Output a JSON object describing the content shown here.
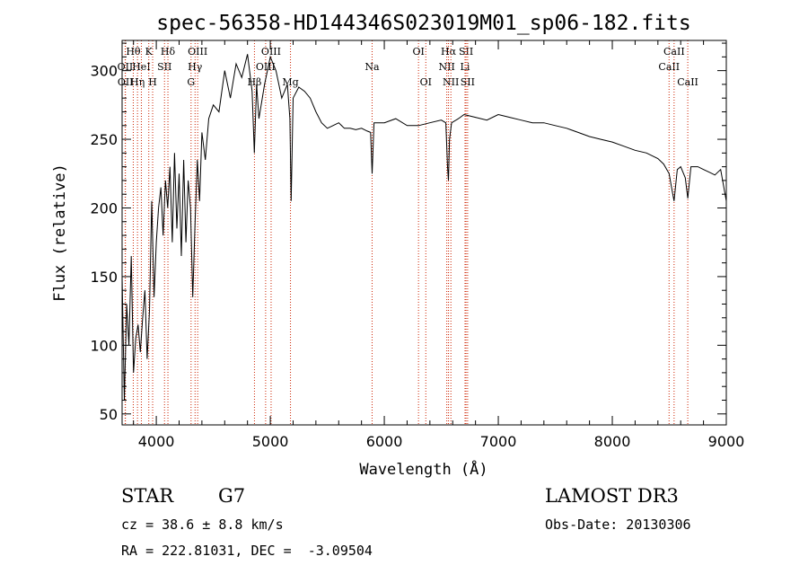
{
  "chart_data": {
    "type": "line",
    "title": "spec-56358-HD144346S023019M01_sp06-182.fits",
    "xlabel": "Wavelength (Å)",
    "ylabel": "Flux (relative)",
    "xlim": [
      3700,
      9000
    ],
    "ylim": [
      42,
      322
    ],
    "x_ticks": [
      4000,
      5000,
      6000,
      7000,
      8000,
      9000
    ],
    "y_ticks": [
      50,
      100,
      150,
      200,
      250,
      300
    ],
    "series": [
      {
        "name": "flux",
        "x": [
          3700,
          3720,
          3740,
          3760,
          3780,
          3800,
          3820,
          3840,
          3860,
          3880,
          3900,
          3920,
          3940,
          3960,
          3980,
          4000,
          4020,
          4040,
          4060,
          4080,
          4100,
          4120,
          4140,
          4160,
          4180,
          4200,
          4220,
          4240,
          4260,
          4280,
          4300,
          4320,
          4340,
          4360,
          4380,
          4400,
          4430,
          4460,
          4500,
          4550,
          4600,
          4650,
          4700,
          4750,
          4800,
          4840,
          4860,
          4880,
          4900,
          4950,
          5000,
          5050,
          5100,
          5150,
          5172,
          5183,
          5200,
          5250,
          5300,
          5350,
          5400,
          5450,
          5500,
          5550,
          5600,
          5650,
          5700,
          5750,
          5800,
          5850,
          5880,
          5893,
          5910,
          5950,
          6000,
          6100,
          6200,
          6300,
          6400,
          6500,
          6540,
          6555,
          6563,
          6572,
          6590,
          6650,
          6700,
          6800,
          6900,
          7000,
          7100,
          7200,
          7300,
          7400,
          7500,
          7600,
          7700,
          7800,
          7900,
          8000,
          8100,
          8200,
          8300,
          8400,
          8450,
          8498,
          8520,
          8542,
          8570,
          8600,
          8640,
          8662,
          8690,
          8750,
          8800,
          8850,
          8900,
          8950,
          9000
        ],
        "values": [
          150,
          60,
          130,
          100,
          165,
          80,
          105,
          115,
          95,
          120,
          140,
          90,
          125,
          205,
          135,
          175,
          200,
          215,
          180,
          220,
          200,
          230,
          175,
          240,
          185,
          225,
          165,
          235,
          175,
          220,
          200,
          135,
          190,
          235,
          205,
          255,
          235,
          265,
          275,
          270,
          300,
          280,
          305,
          295,
          312,
          285,
          240,
          290,
          265,
          290,
          310,
          300,
          280,
          290,
          265,
          205,
          280,
          288,
          285,
          280,
          270,
          262,
          258,
          260,
          262,
          258,
          258,
          257,
          258,
          256,
          255,
          225,
          262,
          262,
          262,
          265,
          260,
          260,
          262,
          264,
          262,
          230,
          220,
          250,
          262,
          265,
          268,
          266,
          264,
          268,
          266,
          264,
          262,
          262,
          260,
          258,
          255,
          252,
          250,
          248,
          245,
          242,
          240,
          236,
          232,
          225,
          215,
          205,
          228,
          230,
          222,
          207,
          230,
          230,
          228,
          226,
          224,
          228,
          205
        ]
      }
    ],
    "line_markers": [
      {
        "wavelength": 3727,
        "label": "OII",
        "row": 2
      },
      {
        "wavelength": 3729,
        "label": "OII",
        "row": 3
      },
      {
        "wavelength": 3798,
        "label": "Hθ",
        "row": 1
      },
      {
        "wavelength": 3835,
        "label": "Hη",
        "row": 3
      },
      {
        "wavelength": 3869,
        "label": "HeI",
        "row": 2
      },
      {
        "wavelength": 3934,
        "label": "K",
        "row": 1
      },
      {
        "wavelength": 3968,
        "label": "H",
        "row": 3
      },
      {
        "wavelength": 4072,
        "label": "SII",
        "row": 2
      },
      {
        "wavelength": 4102,
        "label": "Hδ",
        "row": 1
      },
      {
        "wavelength": 4305,
        "label": "G",
        "row": 3
      },
      {
        "wavelength": 4340,
        "label": "Hγ",
        "row": 2
      },
      {
        "wavelength": 4363,
        "label": "OIII",
        "row": 1
      },
      {
        "wavelength": 4861,
        "label": "Hβ",
        "row": 3
      },
      {
        "wavelength": 4959,
        "label": "OIII",
        "row": 2
      },
      {
        "wavelength": 5007,
        "label": "OIII",
        "row": 1
      },
      {
        "wavelength": 5177,
        "label": "Mg",
        "row": 3
      },
      {
        "wavelength": 5893,
        "label": "Na",
        "row": 2
      },
      {
        "wavelength": 6300,
        "label": "OI",
        "row": 1
      },
      {
        "wavelength": 6364,
        "label": "OI",
        "row": 3
      },
      {
        "wavelength": 6548,
        "label": "NII",
        "row": 2
      },
      {
        "wavelength": 6563,
        "label": "Hα",
        "row": 1
      },
      {
        "wavelength": 6584,
        "label": "NII",
        "row": 3
      },
      {
        "wavelength": 6708,
        "label": "Li",
        "row": 2
      },
      {
        "wavelength": 6717,
        "label": "SII",
        "row": 1
      },
      {
        "wavelength": 6731,
        "label": "SII",
        "row": 3
      },
      {
        "wavelength": 8498,
        "label": "CaII",
        "row": 2
      },
      {
        "wavelength": 8542,
        "label": "CaII",
        "row": 1
      },
      {
        "wavelength": 8662,
        "label": "CaII",
        "row": 3
      }
    ],
    "colors": {
      "spectrum": "#000000",
      "marker": "#cc2200",
      "axes": "#000000"
    }
  },
  "info": {
    "class_type": "STAR",
    "subclass": "G7",
    "survey": "LAMOST DR3",
    "cz": "cz = 38.6 ± 8.8 km/s",
    "obs_date": "Obs-Date: 20130306",
    "coords": "RA = 222.81031, DEC =  -3.09504"
  }
}
